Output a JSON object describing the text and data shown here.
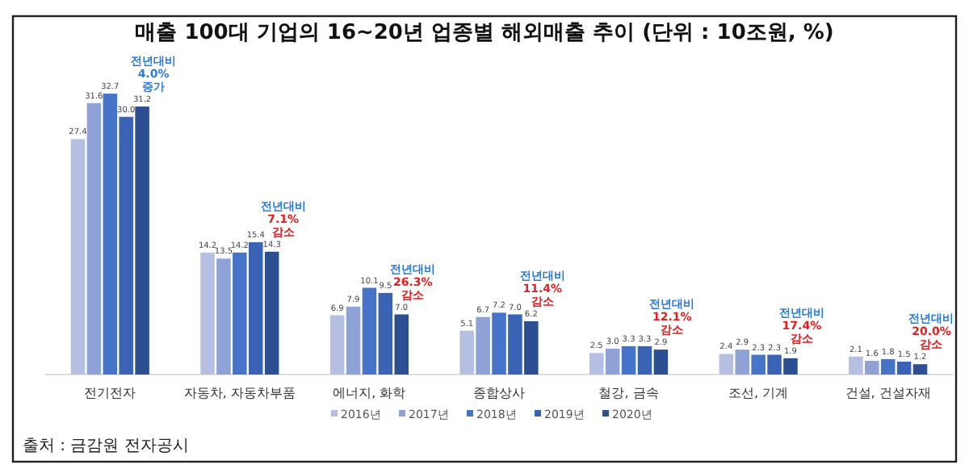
{
  "chart_data": {
    "type": "bar",
    "title": "매출 100대 기업의 16~20년 업종별 해외매출 추이 (단위 : 10조원, %)",
    "categories": [
      "전기전자",
      "자동차, 자동차부품",
      "에너지, 화학",
      "종합상사",
      "철강, 금속",
      "조선, 기계",
      "건설, 건설자재"
    ],
    "series": [
      {
        "name": "2016년",
        "color": "#b4bfe2",
        "values": [
          27.4,
          14.2,
          6.9,
          5.1,
          2.5,
          2.4,
          2.1
        ],
        "value_labels": [
          "27.4",
          "14.2",
          "6.9",
          "5.1",
          "2.5",
          "2.4",
          "2.1"
        ]
      },
      {
        "name": "2017년",
        "color": "#8fa2d8",
        "values": [
          31.6,
          13.5,
          7.9,
          6.7,
          3.0,
          2.9,
          1.6
        ],
        "value_labels": [
          "31.6",
          "13.5",
          "7.9",
          "6.7",
          "3.0",
          "2.9",
          "1.6"
        ]
      },
      {
        "name": "2018년",
        "color": "#4674c8",
        "values": [
          32.7,
          14.2,
          10.1,
          7.2,
          3.3,
          2.3,
          1.8
        ],
        "value_labels": [
          "32.7",
          "14.2",
          "10.1",
          "7.2",
          "3.3",
          "2.3",
          "1.8"
        ]
      },
      {
        "name": "2019년",
        "color": "#3a63b6",
        "values": [
          30.0,
          15.4,
          9.5,
          7.0,
          3.3,
          2.3,
          1.5
        ],
        "value_labels": [
          "30.0",
          "15.4",
          "9.5",
          "7.0",
          "3.3",
          "2.3",
          "1.5"
        ]
      },
      {
        "name": "2020년",
        "color": "#2b4f91",
        "values": [
          31.2,
          14.3,
          7.0,
          6.2,
          2.9,
          1.9,
          1.2
        ],
        "value_labels": [
          "31.2",
          "14.3",
          "7.0",
          "6.2",
          "2.9",
          "1.9",
          "1.2"
        ]
      }
    ],
    "legend": "bottom",
    "annotations": [
      {
        "text": "전년대비 4.0% 증가",
        "x": "전기전자",
        "y": 31.2
      },
      {
        "text": "전년대비 7.1% 감소",
        "x": "자동차, 자동차부품",
        "y": 14.3
      },
      {
        "text": "전년대비 26.3% 감소",
        "x": "에너지, 화학",
        "y": 7.0
      },
      {
        "text": "전년대비 11.4% 감소",
        "x": "종합상사",
        "y": 6.2
      },
      {
        "text": "전년대비 12.1% 감소",
        "x": "철강, 금속",
        "y": 2.9
      },
      {
        "text": "전년대비 17.4% 감소",
        "x": "조선, 기계",
        "y": 1.9
      },
      {
        "text": "전년대비 20.0% 감소",
        "x": "건설, 건설자재",
        "y": 1.2
      },
      "출처 : 금감원 전자공시"
    ]
  }
}
